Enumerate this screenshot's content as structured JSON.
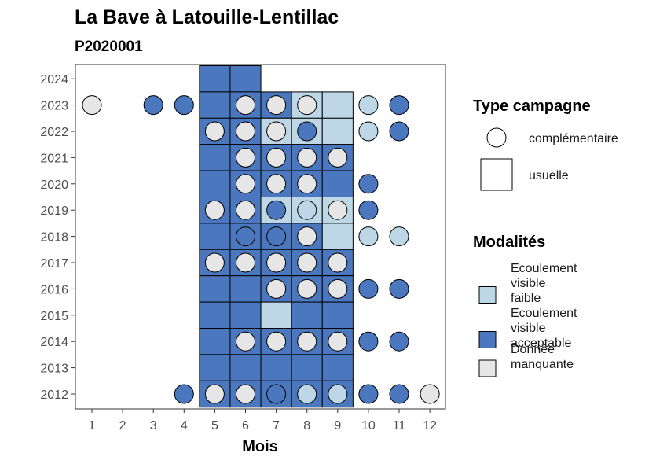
{
  "chart_data": {
    "type": "heatmap",
    "title": "La Bave à Latouille-Lentillac",
    "subtitle": "P2020001",
    "xlabel": "Mois",
    "ylabel": "",
    "x_ticks": [
      1,
      2,
      3,
      4,
      5,
      6,
      7,
      8,
      9,
      10,
      11,
      12
    ],
    "y_ticks": [
      2012,
      2013,
      2014,
      2015,
      2016,
      2017,
      2018,
      2019,
      2020,
      2021,
      2022,
      2023,
      2024
    ],
    "colors": {
      "Ecoulement visible faible": "#bdd7e7",
      "Ecoulement visible acceptable": "#4a77bd",
      "Donnée manquante": "#e6e6e6"
    },
    "legend_type": {
      "title": "Type campagne",
      "items": [
        "complémentaire",
        "usuelle"
      ]
    },
    "legend_modalites": {
      "title": "Modalités",
      "items": [
        {
          "label_lines": [
            "Ecoulement",
            "visible",
            "faible"
          ],
          "key": "Ecoulement visible faible"
        },
        {
          "label_lines": [
            "Ecoulement",
            "visible",
            "acceptable"
          ],
          "key": "Ecoulement visible acceptable"
        },
        {
          "label_lines": [
            "Donnée",
            "manquante"
          ],
          "key": "Donnée manquante"
        }
      ]
    },
    "squares": [
      {
        "year": 2024,
        "month": 5,
        "value": "Ecoulement visible acceptable"
      },
      {
        "year": 2024,
        "month": 6,
        "value": "Ecoulement visible acceptable"
      },
      {
        "year": 2023,
        "month": 5,
        "value": "Ecoulement visible acceptable"
      },
      {
        "year": 2023,
        "month": 6,
        "value": "Ecoulement visible acceptable"
      },
      {
        "year": 2023,
        "month": 7,
        "value": "Ecoulement visible acceptable"
      },
      {
        "year": 2023,
        "month": 8,
        "value": "Ecoulement visible faible"
      },
      {
        "year": 2023,
        "month": 9,
        "value": "Ecoulement visible faible"
      },
      {
        "year": 2022,
        "month": 5,
        "value": "Ecoulement visible acceptable"
      },
      {
        "year": 2022,
        "month": 6,
        "value": "Ecoulement visible acceptable"
      },
      {
        "year": 2022,
        "month": 7,
        "value": "Ecoulement visible faible"
      },
      {
        "year": 2022,
        "month": 8,
        "value": "Ecoulement visible faible"
      },
      {
        "year": 2022,
        "month": 9,
        "value": "Ecoulement visible faible"
      },
      {
        "year": 2021,
        "month": 5,
        "value": "Ecoulement visible acceptable"
      },
      {
        "year": 2021,
        "month": 6,
        "value": "Ecoulement visible acceptable"
      },
      {
        "year": 2021,
        "month": 7,
        "value": "Ecoulement visible acceptable"
      },
      {
        "year": 2021,
        "month": 8,
        "value": "Ecoulement visible acceptable"
      },
      {
        "year": 2021,
        "month": 9,
        "value": "Ecoulement visible acceptable"
      },
      {
        "year": 2020,
        "month": 5,
        "value": "Ecoulement visible acceptable"
      },
      {
        "year": 2020,
        "month": 6,
        "value": "Ecoulement visible acceptable"
      },
      {
        "year": 2020,
        "month": 7,
        "value": "Ecoulement visible acceptable"
      },
      {
        "year": 2020,
        "month": 8,
        "value": "Ecoulement visible acceptable"
      },
      {
        "year": 2020,
        "month": 9,
        "value": "Ecoulement visible acceptable"
      },
      {
        "year": 2019,
        "month": 5,
        "value": "Ecoulement visible acceptable"
      },
      {
        "year": 2019,
        "month": 6,
        "value": "Ecoulement visible acceptable"
      },
      {
        "year": 2019,
        "month": 7,
        "value": "Ecoulement visible faible"
      },
      {
        "year": 2019,
        "month": 8,
        "value": "Ecoulement visible faible"
      },
      {
        "year": 2019,
        "month": 9,
        "value": "Ecoulement visible faible"
      },
      {
        "year": 2018,
        "month": 5,
        "value": "Ecoulement visible acceptable"
      },
      {
        "year": 2018,
        "month": 6,
        "value": "Ecoulement visible acceptable"
      },
      {
        "year": 2018,
        "month": 7,
        "value": "Ecoulement visible acceptable"
      },
      {
        "year": 2018,
        "month": 8,
        "value": "Ecoulement visible acceptable"
      },
      {
        "year": 2018,
        "month": 9,
        "value": "Ecoulement visible faible"
      },
      {
        "year": 2017,
        "month": 5,
        "value": "Ecoulement visible acceptable"
      },
      {
        "year": 2017,
        "month": 6,
        "value": "Ecoulement visible acceptable"
      },
      {
        "year": 2017,
        "month": 7,
        "value": "Ecoulement visible acceptable"
      },
      {
        "year": 2017,
        "month": 8,
        "value": "Ecoulement visible acceptable"
      },
      {
        "year": 2017,
        "month": 9,
        "value": "Ecoulement visible acceptable"
      },
      {
        "year": 2016,
        "month": 5,
        "value": "Ecoulement visible acceptable"
      },
      {
        "year": 2016,
        "month": 6,
        "value": "Ecoulement visible acceptable"
      },
      {
        "year": 2016,
        "month": 7,
        "value": "Ecoulement visible acceptable"
      },
      {
        "year": 2016,
        "month": 8,
        "value": "Ecoulement visible acceptable"
      },
      {
        "year": 2016,
        "month": 9,
        "value": "Ecoulement visible acceptable"
      },
      {
        "year": 2015,
        "month": 5,
        "value": "Ecoulement visible acceptable"
      },
      {
        "year": 2015,
        "month": 6,
        "value": "Ecoulement visible acceptable"
      },
      {
        "year": 2015,
        "month": 7,
        "value": "Ecoulement visible faible"
      },
      {
        "year": 2015,
        "month": 8,
        "value": "Ecoulement visible acceptable"
      },
      {
        "year": 2015,
        "month": 9,
        "value": "Ecoulement visible acceptable"
      },
      {
        "year": 2014,
        "month": 5,
        "value": "Ecoulement visible acceptable"
      },
      {
        "year": 2014,
        "month": 6,
        "value": "Ecoulement visible acceptable"
      },
      {
        "year": 2014,
        "month": 7,
        "value": "Ecoulement visible acceptable"
      },
      {
        "year": 2014,
        "month": 8,
        "value": "Ecoulement visible acceptable"
      },
      {
        "year": 2014,
        "month": 9,
        "value": "Ecoulement visible acceptable"
      },
      {
        "year": 2013,
        "month": 5,
        "value": "Ecoulement visible acceptable"
      },
      {
        "year": 2013,
        "month": 6,
        "value": "Ecoulement visible acceptable"
      },
      {
        "year": 2013,
        "month": 7,
        "value": "Ecoulement visible acceptable"
      },
      {
        "year": 2013,
        "month": 8,
        "value": "Ecoulement visible acceptable"
      },
      {
        "year": 2013,
        "month": 9,
        "value": "Ecoulement visible acceptable"
      },
      {
        "year": 2012,
        "month": 5,
        "value": "Ecoulement visible acceptable"
      },
      {
        "year": 2012,
        "month": 6,
        "value": "Ecoulement visible acceptable"
      },
      {
        "year": 2012,
        "month": 7,
        "value": "Ecoulement visible acceptable"
      },
      {
        "year": 2012,
        "month": 8,
        "value": "Ecoulement visible acceptable"
      },
      {
        "year": 2012,
        "month": 9,
        "value": "Ecoulement visible acceptable"
      }
    ],
    "circles": [
      {
        "year": 2023,
        "month": 1,
        "value": "Donnée manquante"
      },
      {
        "year": 2023,
        "month": 3,
        "value": "Ecoulement visible acceptable"
      },
      {
        "year": 2023,
        "month": 4,
        "value": "Ecoulement visible acceptable"
      },
      {
        "year": 2023,
        "month": 6,
        "value": "Donnée manquante"
      },
      {
        "year": 2023,
        "month": 7,
        "value": "Donnée manquante"
      },
      {
        "year": 2023,
        "month": 8,
        "value": "Donnée manquante"
      },
      {
        "year": 2023,
        "month": 10,
        "value": "Ecoulement visible faible"
      },
      {
        "year": 2023,
        "month": 11,
        "value": "Ecoulement visible acceptable"
      },
      {
        "year": 2022,
        "month": 5,
        "value": "Donnée manquante"
      },
      {
        "year": 2022,
        "month": 6,
        "value": "Donnée manquante"
      },
      {
        "year": 2022,
        "month": 7,
        "value": "Donnée manquante"
      },
      {
        "year": 2022,
        "month": 8,
        "value": "Ecoulement visible acceptable"
      },
      {
        "year": 2022,
        "month": 10,
        "value": "Ecoulement visible faible"
      },
      {
        "year": 2022,
        "month": 11,
        "value": "Ecoulement visible acceptable"
      },
      {
        "year": 2021,
        "month": 6,
        "value": "Donnée manquante"
      },
      {
        "year": 2021,
        "month": 7,
        "value": "Donnée manquante"
      },
      {
        "year": 2021,
        "month": 8,
        "value": "Donnée manquante"
      },
      {
        "year": 2021,
        "month": 9,
        "value": "Donnée manquante"
      },
      {
        "year": 2020,
        "month": 6,
        "value": "Donnée manquante"
      },
      {
        "year": 2020,
        "month": 7,
        "value": "Donnée manquante"
      },
      {
        "year": 2020,
        "month": 8,
        "value": "Donnée manquante"
      },
      {
        "year": 2020,
        "month": 10,
        "value": "Ecoulement visible acceptable"
      },
      {
        "year": 2019,
        "month": 5,
        "value": "Donnée manquante"
      },
      {
        "year": 2019,
        "month": 6,
        "value": "Donnée manquante"
      },
      {
        "year": 2019,
        "month": 7,
        "value": "Ecoulement visible acceptable"
      },
      {
        "year": 2019,
        "month": 8,
        "value": "Ecoulement visible faible"
      },
      {
        "year": 2019,
        "month": 9,
        "value": "Donnée manquante"
      },
      {
        "year": 2019,
        "month": 10,
        "value": "Ecoulement visible acceptable"
      },
      {
        "year": 2018,
        "month": 6,
        "value": "Ecoulement visible acceptable"
      },
      {
        "year": 2018,
        "month": 7,
        "value": "Ecoulement visible acceptable"
      },
      {
        "year": 2018,
        "month": 8,
        "value": "Donnée manquante"
      },
      {
        "year": 2018,
        "month": 10,
        "value": "Ecoulement visible faible"
      },
      {
        "year": 2018,
        "month": 11,
        "value": "Ecoulement visible faible"
      },
      {
        "year": 2017,
        "month": 5,
        "value": "Donnée manquante"
      },
      {
        "year": 2017,
        "month": 6,
        "value": "Donnée manquante"
      },
      {
        "year": 2017,
        "month": 7,
        "value": "Donnée manquante"
      },
      {
        "year": 2017,
        "month": 8,
        "value": "Donnée manquante"
      },
      {
        "year": 2017,
        "month": 9,
        "value": "Donnée manquante"
      },
      {
        "year": 2016,
        "month": 7,
        "value": "Donnée manquante"
      },
      {
        "year": 2016,
        "month": 8,
        "value": "Donnée manquante"
      },
      {
        "year": 2016,
        "month": 9,
        "value": "Donnée manquante"
      },
      {
        "year": 2016,
        "month": 10,
        "value": "Ecoulement visible acceptable"
      },
      {
        "year": 2016,
        "month": 11,
        "value": "Ecoulement visible acceptable"
      },
      {
        "year": 2014,
        "month": 6,
        "value": "Donnée manquante"
      },
      {
        "year": 2014,
        "month": 7,
        "value": "Donnée manquante"
      },
      {
        "year": 2014,
        "month": 8,
        "value": "Donnée manquante"
      },
      {
        "year": 2014,
        "month": 9,
        "value": "Donnée manquante"
      },
      {
        "year": 2014,
        "month": 10,
        "value": "Ecoulement visible acceptable"
      },
      {
        "year": 2014,
        "month": 11,
        "value": "Ecoulement visible acceptable"
      },
      {
        "year": 2012,
        "month": 4,
        "value": "Ecoulement visible acceptable"
      },
      {
        "year": 2012,
        "month": 5,
        "value": "Donnée manquante"
      },
      {
        "year": 2012,
        "month": 6,
        "value": "Donnée manquante"
      },
      {
        "year": 2012,
        "month": 7,
        "value": "Ecoulement visible acceptable"
      },
      {
        "year": 2012,
        "month": 8,
        "value": "Ecoulement visible faible"
      },
      {
        "year": 2012,
        "month": 9,
        "value": "Ecoulement visible faible"
      },
      {
        "year": 2012,
        "month": 10,
        "value": "Ecoulement visible acceptable"
      },
      {
        "year": 2012,
        "month": 11,
        "value": "Ecoulement visible acceptable"
      },
      {
        "year": 2012,
        "month": 12,
        "value": "Donnée manquante"
      }
    ]
  }
}
